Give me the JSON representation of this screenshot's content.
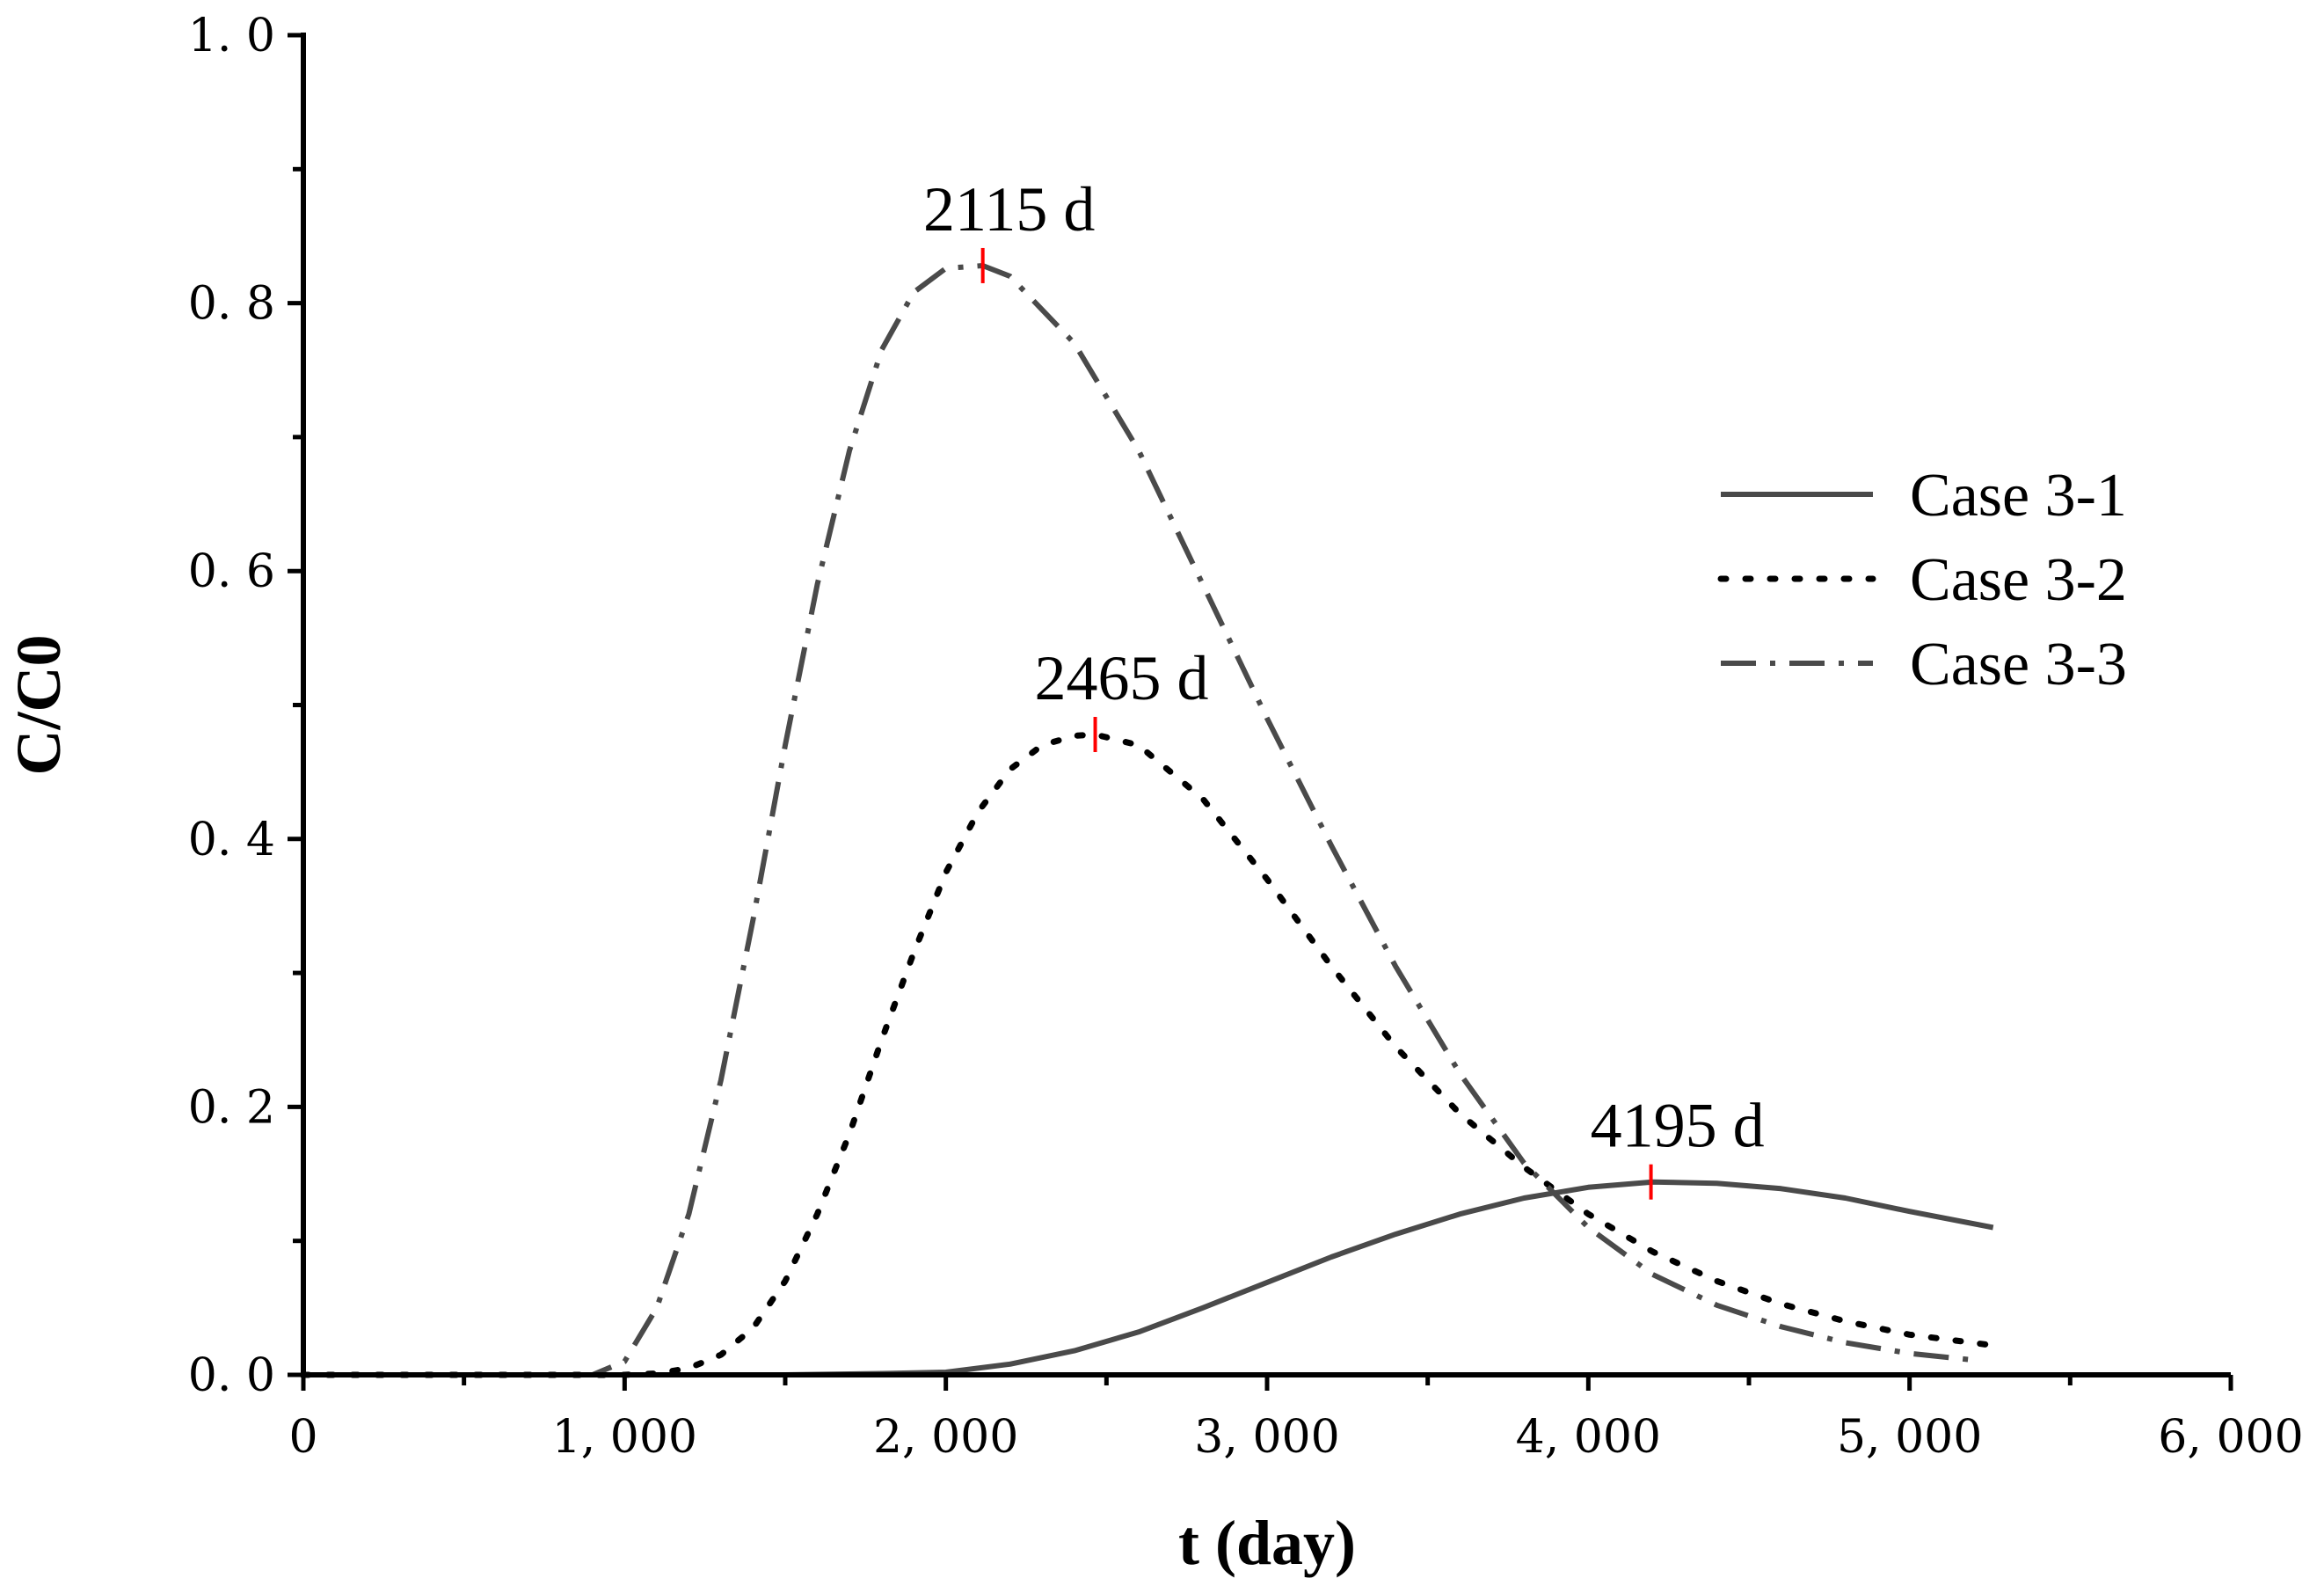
{
  "chart_data": {
    "type": "line",
    "title": "",
    "xlabel": "t (day)",
    "ylabel": "C/C0",
    "xlim": [
      0,
      6000
    ],
    "ylim": [
      0,
      1.0
    ],
    "x_ticks": [
      {
        "value": 0,
        "label": "0"
      },
      {
        "value": 1000,
        "label": "1, 000"
      },
      {
        "value": 2000,
        "label": "2, 000"
      },
      {
        "value": 3000,
        "label": "3, 000"
      },
      {
        "value": 4000,
        "label": "4, 000"
      },
      {
        "value": 5000,
        "label": "5, 000"
      },
      {
        "value": 6000,
        "label": "6, 000"
      }
    ],
    "y_ticks": [
      {
        "value": 0.0,
        "label": "0. 0"
      },
      {
        "value": 0.2,
        "label": "0. 2"
      },
      {
        "value": 0.4,
        "label": "0. 4"
      },
      {
        "value": 0.6,
        "label": "0. 6"
      },
      {
        "value": 0.8,
        "label": "0. 8"
      },
      {
        "value": 1.0,
        "label": "1. 0"
      }
    ],
    "grid": false,
    "legend_position": "right",
    "series": [
      {
        "name": "Case 3-1",
        "style": "solid",
        "color": "#4a4a4a",
        "points": [
          [
            0,
            0
          ],
          [
            500,
            0
          ],
          [
            1000,
            0
          ],
          [
            1500,
            0
          ],
          [
            1800,
            0.001
          ],
          [
            2000,
            0.002
          ],
          [
            2200,
            0.008
          ],
          [
            2400,
            0.018
          ],
          [
            2600,
            0.032
          ],
          [
            2800,
            0.05
          ],
          [
            3000,
            0.069
          ],
          [
            3200,
            0.088
          ],
          [
            3400,
            0.105
          ],
          [
            3600,
            0.12
          ],
          [
            3800,
            0.132
          ],
          [
            4000,
            0.14
          ],
          [
            4200,
            0.144
          ],
          [
            4400,
            0.143
          ],
          [
            4600,
            0.139
          ],
          [
            4800,
            0.132
          ],
          [
            5000,
            0.122
          ],
          [
            5260,
            0.11
          ]
        ]
      },
      {
        "name": "Case 3-2",
        "style": "dotted",
        "color": "#000000",
        "points": [
          [
            0,
            0
          ],
          [
            500,
            0
          ],
          [
            1000,
            0
          ],
          [
            1100,
            0.001
          ],
          [
            1200,
            0.005
          ],
          [
            1300,
            0.015
          ],
          [
            1400,
            0.035
          ],
          [
            1500,
            0.07
          ],
          [
            1600,
            0.12
          ],
          [
            1700,
            0.18
          ],
          [
            1800,
            0.25
          ],
          [
            1900,
            0.315
          ],
          [
            2000,
            0.375
          ],
          [
            2100,
            0.42
          ],
          [
            2200,
            0.452
          ],
          [
            2300,
            0.47
          ],
          [
            2400,
            0.477
          ],
          [
            2465,
            0.478
          ],
          [
            2600,
            0.47
          ],
          [
            2800,
            0.43
          ],
          [
            3000,
            0.37
          ],
          [
            3200,
            0.305
          ],
          [
            3400,
            0.245
          ],
          [
            3600,
            0.195
          ],
          [
            3800,
            0.155
          ],
          [
            4000,
            0.12
          ],
          [
            4200,
            0.092
          ],
          [
            4400,
            0.07
          ],
          [
            4600,
            0.053
          ],
          [
            4800,
            0.04
          ],
          [
            5000,
            0.03
          ],
          [
            5260,
            0.022
          ]
        ]
      },
      {
        "name": "Case 3-3",
        "style": "dashdot",
        "color": "#4a4a4a",
        "points": [
          [
            0,
            0
          ],
          [
            500,
            0
          ],
          [
            900,
            0
          ],
          [
            1000,
            0.01
          ],
          [
            1100,
            0.05
          ],
          [
            1200,
            0.12
          ],
          [
            1300,
            0.22
          ],
          [
            1400,
            0.34
          ],
          [
            1500,
            0.47
          ],
          [
            1600,
            0.59
          ],
          [
            1700,
            0.69
          ],
          [
            1800,
            0.765
          ],
          [
            1900,
            0.808
          ],
          [
            2000,
            0.826
          ],
          [
            2115,
            0.828
          ],
          [
            2200,
            0.82
          ],
          [
            2400,
            0.77
          ],
          [
            2600,
            0.69
          ],
          [
            2800,
            0.59
          ],
          [
            3000,
            0.49
          ],
          [
            3200,
            0.395
          ],
          [
            3400,
            0.305
          ],
          [
            3600,
            0.225
          ],
          [
            3800,
            0.158
          ],
          [
            4000,
            0.11
          ],
          [
            4200,
            0.075
          ],
          [
            4400,
            0.052
          ],
          [
            4600,
            0.036
          ],
          [
            4800,
            0.024
          ],
          [
            5000,
            0.016
          ],
          [
            5200,
            0.011
          ]
        ]
      }
    ],
    "annotations": [
      {
        "text": "2115 d",
        "x": 2115,
        "y": 0.828
      },
      {
        "text": "2465 d",
        "x": 2465,
        "y": 0.478
      },
      {
        "text": "4195 d",
        "x": 4195,
        "y": 0.144
      }
    ],
    "marker_color": "#ff0000"
  }
}
